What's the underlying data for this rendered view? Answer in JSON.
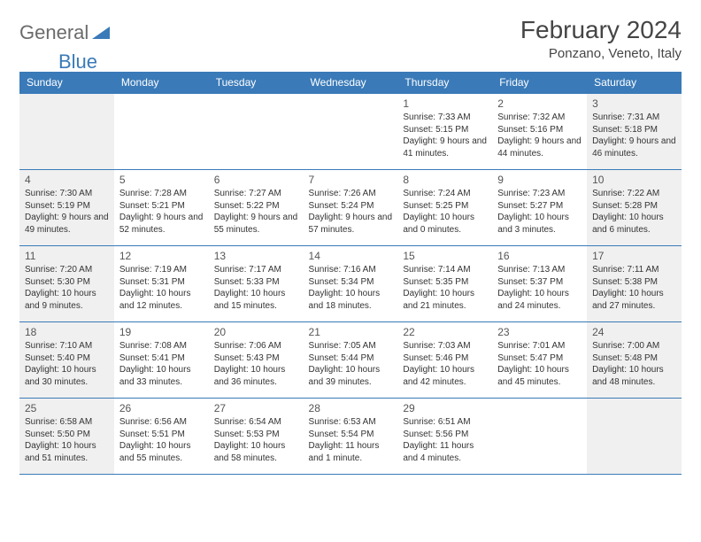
{
  "logo": {
    "part1": "General",
    "part2": "Blue"
  },
  "title": "February 2024",
  "location": "Ponzano, Veneto, Italy",
  "colors": {
    "header_bg": "#3a7ab8",
    "header_text": "#ffffff",
    "border": "#3a7ab8",
    "weekend_bg": "#f0f0f0",
    "text": "#333333",
    "logo_gray": "#6b6b6b",
    "logo_blue": "#3a7ab8"
  },
  "typography": {
    "title_fontsize": 28,
    "location_fontsize": 15,
    "header_fontsize": 12,
    "daynum_fontsize": 12,
    "body_fontsize": 10
  },
  "day_headers": [
    "Sunday",
    "Monday",
    "Tuesday",
    "Wednesday",
    "Thursday",
    "Friday",
    "Saturday"
  ],
  "weekend_cols": [
    0,
    6
  ],
  "weeks": [
    [
      null,
      null,
      null,
      null,
      {
        "n": "1",
        "sr": "7:33 AM",
        "ss": "5:15 PM",
        "dl": "9 hours and 41 minutes."
      },
      {
        "n": "2",
        "sr": "7:32 AM",
        "ss": "5:16 PM",
        "dl": "9 hours and 44 minutes."
      },
      {
        "n": "3",
        "sr": "7:31 AM",
        "ss": "5:18 PM",
        "dl": "9 hours and 46 minutes."
      }
    ],
    [
      {
        "n": "4",
        "sr": "7:30 AM",
        "ss": "5:19 PM",
        "dl": "9 hours and 49 minutes."
      },
      {
        "n": "5",
        "sr": "7:28 AM",
        "ss": "5:21 PM",
        "dl": "9 hours and 52 minutes."
      },
      {
        "n": "6",
        "sr": "7:27 AM",
        "ss": "5:22 PM",
        "dl": "9 hours and 55 minutes."
      },
      {
        "n": "7",
        "sr": "7:26 AM",
        "ss": "5:24 PM",
        "dl": "9 hours and 57 minutes."
      },
      {
        "n": "8",
        "sr": "7:24 AM",
        "ss": "5:25 PM",
        "dl": "10 hours and 0 minutes."
      },
      {
        "n": "9",
        "sr": "7:23 AM",
        "ss": "5:27 PM",
        "dl": "10 hours and 3 minutes."
      },
      {
        "n": "10",
        "sr": "7:22 AM",
        "ss": "5:28 PM",
        "dl": "10 hours and 6 minutes."
      }
    ],
    [
      {
        "n": "11",
        "sr": "7:20 AM",
        "ss": "5:30 PM",
        "dl": "10 hours and 9 minutes."
      },
      {
        "n": "12",
        "sr": "7:19 AM",
        "ss": "5:31 PM",
        "dl": "10 hours and 12 minutes."
      },
      {
        "n": "13",
        "sr": "7:17 AM",
        "ss": "5:33 PM",
        "dl": "10 hours and 15 minutes."
      },
      {
        "n": "14",
        "sr": "7:16 AM",
        "ss": "5:34 PM",
        "dl": "10 hours and 18 minutes."
      },
      {
        "n": "15",
        "sr": "7:14 AM",
        "ss": "5:35 PM",
        "dl": "10 hours and 21 minutes."
      },
      {
        "n": "16",
        "sr": "7:13 AM",
        "ss": "5:37 PM",
        "dl": "10 hours and 24 minutes."
      },
      {
        "n": "17",
        "sr": "7:11 AM",
        "ss": "5:38 PM",
        "dl": "10 hours and 27 minutes."
      }
    ],
    [
      {
        "n": "18",
        "sr": "7:10 AM",
        "ss": "5:40 PM",
        "dl": "10 hours and 30 minutes."
      },
      {
        "n": "19",
        "sr": "7:08 AM",
        "ss": "5:41 PM",
        "dl": "10 hours and 33 minutes."
      },
      {
        "n": "20",
        "sr": "7:06 AM",
        "ss": "5:43 PM",
        "dl": "10 hours and 36 minutes."
      },
      {
        "n": "21",
        "sr": "7:05 AM",
        "ss": "5:44 PM",
        "dl": "10 hours and 39 minutes."
      },
      {
        "n": "22",
        "sr": "7:03 AM",
        "ss": "5:46 PM",
        "dl": "10 hours and 42 minutes."
      },
      {
        "n": "23",
        "sr": "7:01 AM",
        "ss": "5:47 PM",
        "dl": "10 hours and 45 minutes."
      },
      {
        "n": "24",
        "sr": "7:00 AM",
        "ss": "5:48 PM",
        "dl": "10 hours and 48 minutes."
      }
    ],
    [
      {
        "n": "25",
        "sr": "6:58 AM",
        "ss": "5:50 PM",
        "dl": "10 hours and 51 minutes."
      },
      {
        "n": "26",
        "sr": "6:56 AM",
        "ss": "5:51 PM",
        "dl": "10 hours and 55 minutes."
      },
      {
        "n": "27",
        "sr": "6:54 AM",
        "ss": "5:53 PM",
        "dl": "10 hours and 58 minutes."
      },
      {
        "n": "28",
        "sr": "6:53 AM",
        "ss": "5:54 PM",
        "dl": "11 hours and 1 minute."
      },
      {
        "n": "29",
        "sr": "6:51 AM",
        "ss": "5:56 PM",
        "dl": "11 hours and 4 minutes."
      },
      null,
      null
    ]
  ],
  "labels": {
    "sunrise": "Sunrise:",
    "sunset": "Sunset:",
    "daylight": "Daylight:"
  }
}
